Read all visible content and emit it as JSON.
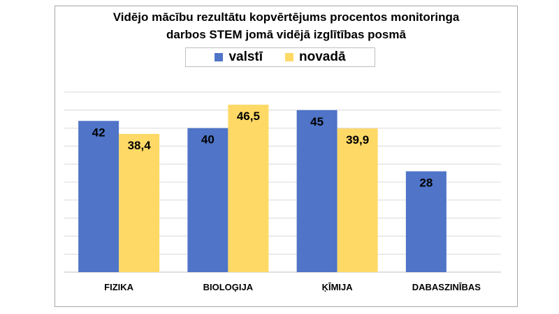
{
  "chart_data": {
    "type": "bar",
    "title_line1": "Vidējo mācību rezultātu kopvērtējums procentos monitoringa",
    "title_line2": "darbos STEM jomā vidējā izglītības posmā",
    "categories": [
      "FIZIKA",
      "BIOLOĢIJA",
      "ĶĪMIJA",
      "DABASZINĪBAS"
    ],
    "series": [
      {
        "name": "valstī",
        "values": [
          42,
          40,
          45,
          28
        ],
        "labels": [
          "42",
          "40",
          "45",
          "28"
        ],
        "color": "#4f74c8"
      },
      {
        "name": "novadā",
        "values": [
          38.4,
          46.5,
          39.9,
          null
        ],
        "labels": [
          "38,4",
          "46,5",
          "39,9",
          ""
        ],
        "color": "#ffd966"
      }
    ],
    "ylim": [
      0,
      50
    ],
    "grid": true,
    "legend_position": "top"
  }
}
